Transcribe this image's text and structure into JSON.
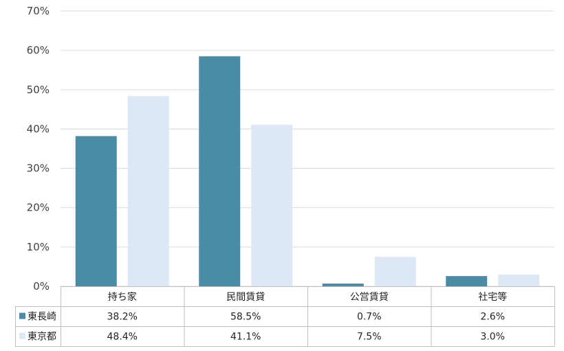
{
  "chart_data": {
    "type": "bar",
    "categories": [
      "持ち家",
      "民間賃貸",
      "公営賃貸",
      "社宅等"
    ],
    "series": [
      {
        "name": "東長崎",
        "values": [
          38.2,
          58.5,
          0.7,
          2.6
        ],
        "labels": [
          "38.2%",
          "58.5%",
          "0.7%",
          "2.6%"
        ],
        "color": "#4a8ca6"
      },
      {
        "name": "東京都",
        "values": [
          48.4,
          41.1,
          7.5,
          3.0
        ],
        "labels": [
          "48.4%",
          "41.1%",
          "7.5%",
          "3.0%"
        ],
        "color": "#dce8f5"
      }
    ],
    "yticks": [
      "0%",
      "10%",
      "20%",
      "30%",
      "40%",
      "50%",
      "60%",
      "70%"
    ],
    "ylim": [
      0,
      70
    ],
    "grid": true,
    "data_table": true,
    "grid_color": "#d9d9d9"
  }
}
